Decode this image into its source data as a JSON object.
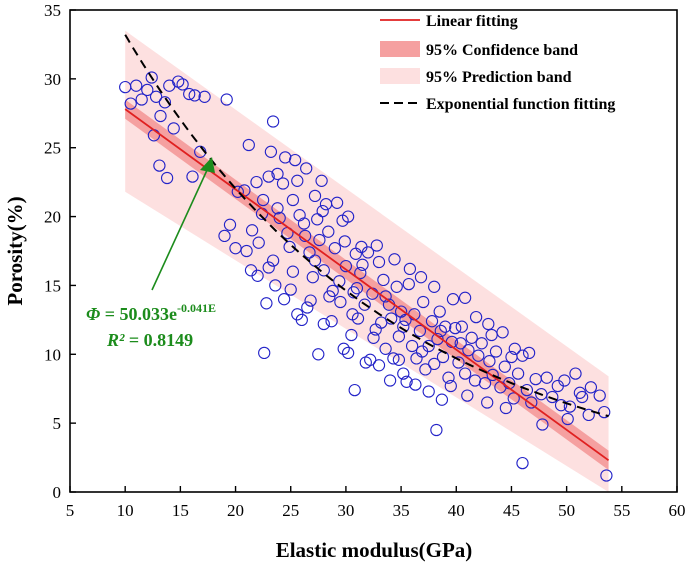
{
  "chart_data": {
    "type": "scatter",
    "xlabel": "Elastic modulus(GPa)",
    "ylabel": "Porosity(%)",
    "xlim": [
      5,
      60
    ],
    "ylim": [
      0,
      35
    ],
    "xticks": [
      "5",
      "10",
      "15",
      "20",
      "25",
      "30",
      "35",
      "40",
      "45",
      "50",
      "55",
      "60"
    ],
    "yticks": [
      "0",
      "5",
      "10",
      "15",
      "20",
      "25",
      "30",
      "35"
    ],
    "legend_position": "top-right",
    "legend": [
      {
        "key": "linear",
        "label": "Linear fitting"
      },
      {
        "key": "conf",
        "label": "95% Confidence band"
      },
      {
        "key": "pred",
        "label": "95% Prediction band"
      },
      {
        "key": "exp",
        "label": "Exponential function fitting"
      }
    ],
    "linear_fit": {
      "x": [
        10,
        53.8
      ],
      "y": [
        27.8,
        2.3
      ]
    },
    "confidence_band": {
      "x": [
        10,
        53.8
      ],
      "upper": [
        28.5,
        3.0
      ],
      "lower": [
        27.1,
        1.6
      ]
    },
    "prediction_band": {
      "x": [
        10,
        53.8
      ],
      "upper": [
        33.5,
        8.4
      ],
      "lower": [
        21.8,
        -3.6
      ]
    },
    "exponential_fit": {
      "coef": 50.033,
      "rate": -0.041,
      "x_range": [
        10,
        53.8
      ]
    },
    "equation": {
      "lhs": "Φ",
      "equals": " = 50.033e",
      "exponent": "-0.041E",
      "r2_label": "R²",
      "r2_value": " = 0.8149"
    },
    "colors": {
      "points": "#2323c8",
      "linear": "#e02020",
      "confidence": "#f5a0a0",
      "prediction": "#fde0e0",
      "equation": "#1c8c1c"
    },
    "points": [
      [
        10.0,
        29.4
      ],
      [
        10.5,
        28.2
      ],
      [
        11.0,
        29.5
      ],
      [
        11.5,
        28.5
      ],
      [
        12.0,
        29.2
      ],
      [
        12.4,
        30.1
      ],
      [
        12.8,
        28.7
      ],
      [
        13.2,
        27.3
      ],
      [
        12.6,
        25.9
      ],
      [
        13.1,
        23.7
      ],
      [
        13.6,
        28.3
      ],
      [
        14.0,
        29.5
      ],
      [
        14.4,
        26.4
      ],
      [
        14.8,
        29.8
      ],
      [
        15.2,
        29.6
      ],
      [
        15.8,
        28.9
      ],
      [
        16.3,
        28.8
      ],
      [
        16.8,
        24.7
      ],
      [
        17.2,
        28.7
      ],
      [
        16.1,
        22.9
      ],
      [
        13.8,
        22.8
      ],
      [
        19.2,
        28.5
      ],
      [
        21.2,
        25.2
      ],
      [
        23.4,
        26.9
      ],
      [
        19.0,
        18.6
      ],
      [
        19.5,
        19.4
      ],
      [
        20.2,
        21.8
      ],
      [
        20.8,
        21.9
      ],
      [
        21.0,
        17.5
      ],
      [
        21.4,
        16.1
      ],
      [
        21.9,
        22.5
      ],
      [
        22.1,
        18.1
      ],
      [
        22.5,
        21.2
      ],
      [
        22.8,
        13.7
      ],
      [
        23.0,
        22.9
      ],
      [
        23.2,
        24.7
      ],
      [
        23.4,
        16.8
      ],
      [
        23.6,
        15.0
      ],
      [
        23.8,
        23.1
      ],
      [
        24.0,
        19.9
      ],
      [
        24.3,
        22.4
      ],
      [
        24.5,
        24.3
      ],
      [
        24.7,
        18.8
      ],
      [
        25.0,
        14.7
      ],
      [
        25.2,
        16.0
      ],
      [
        25.4,
        24.1
      ],
      [
        25.6,
        22.6
      ],
      [
        25.8,
        20.1
      ],
      [
        26.0,
        12.5
      ],
      [
        26.3,
        18.6
      ],
      [
        26.5,
        13.4
      ],
      [
        26.7,
        17.4
      ],
      [
        27.0,
        15.6
      ],
      [
        27.2,
        21.5
      ],
      [
        27.4,
        19.8
      ],
      [
        27.6,
        18.3
      ],
      [
        27.8,
        22.6
      ],
      [
        28.0,
        16.1
      ],
      [
        28.2,
        20.9
      ],
      [
        28.5,
        14.2
      ],
      [
        28.7,
        12.4
      ],
      [
        29.0,
        17.7
      ],
      [
        29.2,
        21.0
      ],
      [
        29.5,
        13.8
      ],
      [
        29.7,
        19.7
      ],
      [
        30.0,
        16.4
      ],
      [
        30.2,
        20.0
      ],
      [
        30.5,
        11.4
      ],
      [
        30.7,
        14.5
      ],
      [
        30.9,
        17.3
      ],
      [
        31.1,
        12.6
      ],
      [
        31.3,
        15.9
      ],
      [
        31.5,
        16.5
      ],
      [
        31.7,
        13.6
      ],
      [
        32.0,
        17.4
      ],
      [
        32.2,
        9.6
      ],
      [
        32.4,
        14.4
      ],
      [
        32.7,
        11.8
      ],
      [
        33.0,
        16.7
      ],
      [
        33.2,
        12.3
      ],
      [
        33.4,
        15.4
      ],
      [
        33.6,
        10.4
      ],
      [
        33.9,
        13.6
      ],
      [
        34.1,
        12.6
      ],
      [
        34.3,
        9.7
      ],
      [
        34.6,
        14.9
      ],
      [
        34.8,
        11.3
      ],
      [
        35.0,
        13.1
      ],
      [
        35.2,
        8.6
      ],
      [
        35.4,
        12.5
      ],
      [
        35.7,
        15.1
      ],
      [
        36.0,
        10.6
      ],
      [
        36.2,
        12.9
      ],
      [
        36.4,
        9.7
      ],
      [
        36.7,
        11.7
      ],
      [
        37.0,
        13.8
      ],
      [
        37.2,
        8.9
      ],
      [
        37.5,
        10.6
      ],
      [
        37.8,
        12.4
      ],
      [
        38.0,
        9.3
      ],
      [
        38.3,
        11.1
      ],
      [
        38.5,
        13.1
      ],
      [
        38.8,
        9.8
      ],
      [
        39.0,
        12.0
      ],
      [
        39.3,
        8.3
      ],
      [
        39.6,
        10.9
      ],
      [
        39.9,
        11.9
      ],
      [
        40.2,
        9.4
      ],
      [
        40.5,
        12.0
      ],
      [
        40.8,
        8.6
      ],
      [
        41.1,
        10.3
      ],
      [
        41.4,
        11.2
      ],
      [
        41.7,
        8.1
      ],
      [
        42.0,
        9.9
      ],
      [
        42.3,
        10.8
      ],
      [
        42.6,
        7.9
      ],
      [
        43.0,
        9.5
      ],
      [
        43.3,
        8.5
      ],
      [
        43.6,
        10.2
      ],
      [
        44.0,
        7.6
      ],
      [
        44.4,
        9.1
      ],
      [
        44.8,
        7.9
      ],
      [
        45.2,
        6.8
      ],
      [
        45.6,
        8.6
      ],
      [
        46.0,
        9.9
      ],
      [
        46.4,
        7.4
      ],
      [
        46.8,
        6.5
      ],
      [
        47.2,
        8.2
      ],
      [
        47.7,
        7.1
      ],
      [
        48.2,
        8.3
      ],
      [
        48.7,
        6.9
      ],
      [
        49.2,
        7.7
      ],
      [
        49.8,
        8.1
      ],
      [
        50.3,
        6.2
      ],
      [
        50.8,
        8.6
      ],
      [
        51.4,
        6.9
      ],
      [
        52.2,
        7.6
      ],
      [
        53.0,
        7.0
      ],
      [
        53.4,
        5.8
      ],
      [
        53.6,
        1.2
      ],
      [
        22.6,
        10.1
      ],
      [
        27.5,
        10.0
      ],
      [
        30.2,
        10.1
      ],
      [
        30.8,
        7.4
      ],
      [
        38.2,
        4.5
      ],
      [
        46.0,
        2.1
      ],
      [
        50.1,
        5.3
      ],
      [
        51.2,
        7.2
      ],
      [
        52.0,
        5.6
      ],
      [
        49.5,
        6.3
      ],
      [
        47.8,
        4.9
      ],
      [
        44.5,
        6.1
      ],
      [
        42.8,
        6.5
      ],
      [
        41.0,
        7.0
      ],
      [
        39.5,
        7.7
      ],
      [
        37.5,
        7.3
      ],
      [
        35.5,
        8.0
      ],
      [
        34.0,
        8.1
      ],
      [
        33.0,
        9.2
      ],
      [
        31.8,
        9.4
      ],
      [
        29.8,
        10.4
      ],
      [
        28.8,
        14.6
      ],
      [
        26.8,
        13.9
      ],
      [
        25.6,
        12.9
      ],
      [
        24.4,
        14.0
      ],
      [
        23.0,
        16.3
      ],
      [
        22.0,
        15.7
      ],
      [
        21.5,
        19.0
      ],
      [
        20.0,
        17.7
      ],
      [
        25.2,
        21.2
      ],
      [
        26.2,
        19.5
      ],
      [
        28.4,
        18.9
      ],
      [
        29.9,
        18.2
      ],
      [
        31.4,
        17.8
      ],
      [
        32.8,
        17.9
      ],
      [
        34.4,
        16.9
      ],
      [
        35.8,
        16.2
      ],
      [
        36.8,
        15.6
      ],
      [
        38.0,
        14.9
      ],
      [
        39.7,
        14.0
      ],
      [
        40.8,
        14.1
      ],
      [
        41.8,
        12.7
      ],
      [
        42.9,
        12.2
      ],
      [
        44.2,
        11.6
      ],
      [
        45.3,
        10.4
      ],
      [
        46.6,
        10.1
      ],
      [
        38.7,
        6.7
      ],
      [
        36.3,
        7.8
      ],
      [
        34.8,
        9.6
      ],
      [
        32.5,
        11.2
      ],
      [
        30.6,
        12.9
      ],
      [
        28.0,
        12.2
      ],
      [
        27.2,
        16.8
      ],
      [
        24.9,
        17.8
      ],
      [
        23.8,
        20.6
      ],
      [
        22.4,
        20.2
      ],
      [
        26.4,
        23.5
      ],
      [
        27.9,
        20.4
      ],
      [
        29.4,
        15.3
      ],
      [
        31.0,
        14.8
      ],
      [
        33.6,
        14.2
      ],
      [
        35.2,
        12.0
      ],
      [
        36.9,
        10.2
      ],
      [
        38.6,
        11.7
      ],
      [
        40.4,
        10.8
      ],
      [
        43.2,
        11.4
      ],
      [
        45.0,
        9.8
      ]
    ]
  }
}
